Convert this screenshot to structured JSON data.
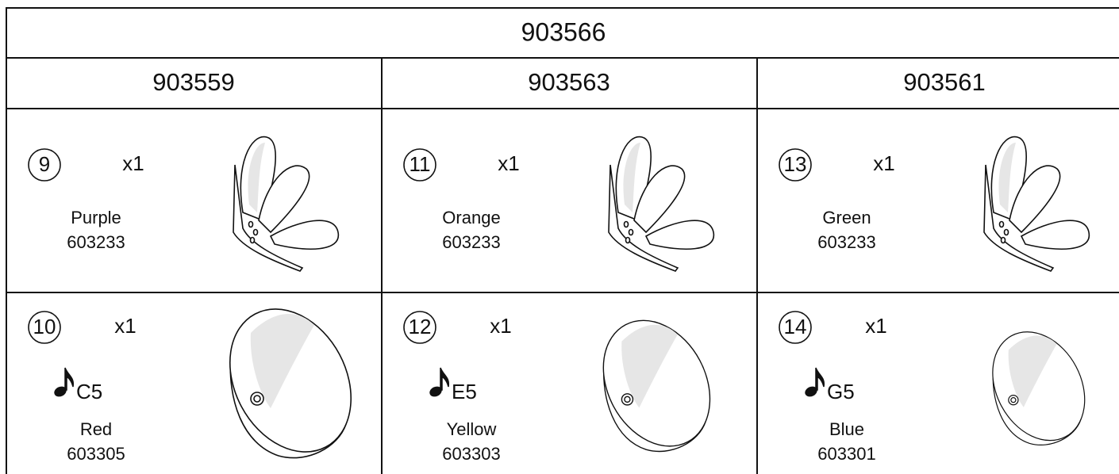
{
  "table": {
    "title": "903566",
    "columns": [
      {
        "title": "903559",
        "items": [
          {
            "number": "9",
            "quantity": "x1",
            "color": "Purple",
            "part": "603233"
          },
          {
            "number": "10",
            "quantity": "x1",
            "note": "C5",
            "color": "Red",
            "part": "603305"
          }
        ]
      },
      {
        "title": "903563",
        "items": [
          {
            "number": "11",
            "quantity": "x1",
            "color": "Orange",
            "part": "603233"
          },
          {
            "number": "12",
            "quantity": "x1",
            "note": "E5",
            "color": "Yellow",
            "part": "603303"
          }
        ]
      },
      {
        "title": "903561",
        "items": [
          {
            "number": "13",
            "quantity": "x1",
            "color": "Green",
            "part": "603233"
          },
          {
            "number": "14",
            "quantity": "x1",
            "note": "G5",
            "color": "Blue",
            "part": "603301"
          }
        ]
      }
    ]
  }
}
